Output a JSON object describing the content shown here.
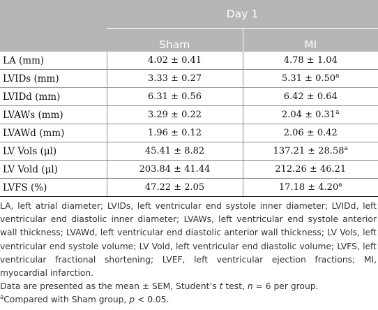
{
  "table": {
    "header": {
      "group_label": "Day 1",
      "columns": [
        "Sham",
        "MI"
      ]
    },
    "rows": [
      {
        "label": "LA (mm)",
        "sham": "4.02 ± 0.41",
        "sham_sup": "",
        "mi": "4.78 ± 1.04",
        "mi_sup": ""
      },
      {
        "label": "LVIDs (mm)",
        "sham": "3.33 ± 0.27",
        "sham_sup": "",
        "mi": "5.31 ± 0.50",
        "mi_sup": "a"
      },
      {
        "label": "LVIDd (mm)",
        "sham": "6.31 ± 0.56",
        "sham_sup": "",
        "mi": "6.42 ± 0.64",
        "mi_sup": ""
      },
      {
        "label": "LVAWs (mm)",
        "sham": "3.29 ± 0.22",
        "sham_sup": "",
        "mi": "2.04 ± 0.31",
        "mi_sup": "a"
      },
      {
        "label": "LVAWd (mm)",
        "sham": "1.96 ± 0.12",
        "sham_sup": "",
        "mi": "2.06 ± 0.42",
        "mi_sup": ""
      },
      {
        "label": "LV Vols (μl)",
        "sham": "45.41 ± 8.82",
        "sham_sup": "",
        "mi": "137.21 ± 28.58",
        "mi_sup": "a"
      },
      {
        "label": "LV Vold (μl)",
        "sham": "203.84 ± 41.44",
        "sham_sup": "",
        "mi": "212.26 ± 46.21",
        "mi_sup": ""
      },
      {
        "label": "LVFS (%)",
        "sham": "47.22 ± 2.05",
        "sham_sup": "",
        "mi": "17.18 ± 4.20",
        "mi_sup": "a"
      }
    ]
  },
  "footnotes": {
    "abbreviations": "LA, left atrial diameter; LVIDs, left ventricular end systole inner diameter; LVIDd, left ventricular end diastolic inner diameter; LVAWs, left ventricular end systole anterior wall thickness; LVAWd, left ventricular end diastolic anterior wall thickness; LV Vols, left ventricular end systole volume; LV Vold, left ventricular end diastolic volume; LVFS, left ventricular fractional shortening; LVEF, left ventricular ejection fractions; MI, myocardial infarction.",
    "stats_prefix": "Data are presented as the mean ± SEM, Student’s ",
    "stats_t": "t",
    "stats_mid": " test, ",
    "stats_n": "n",
    "stats_suffix": " = 6 per group.",
    "sig_marker": "a",
    "sig_text": "Compared with Sham group, ",
    "sig_p": "p",
    "sig_suffix": " < 0.05."
  }
}
